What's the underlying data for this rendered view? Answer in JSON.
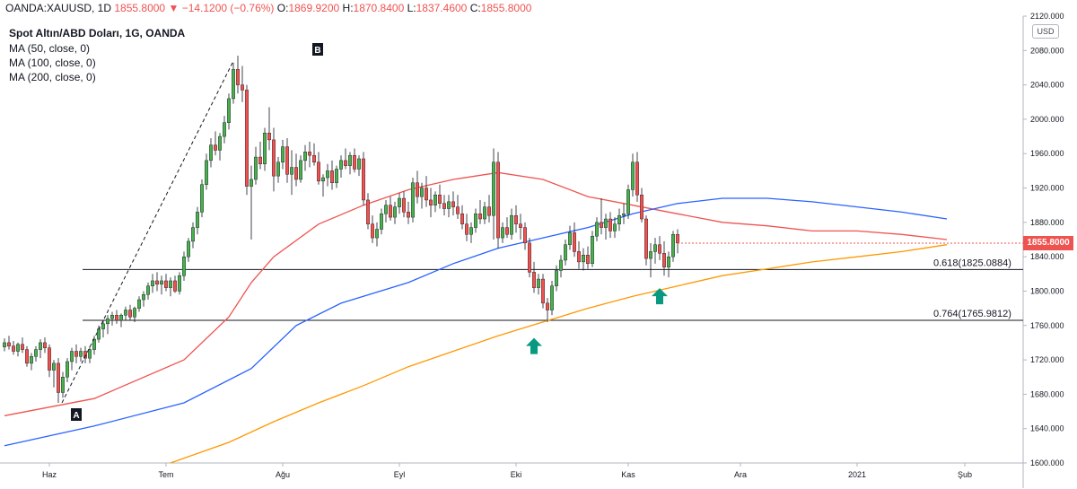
{
  "header": {
    "symbol": "OANDA:XAUUSD, 1D",
    "last": "1855.8000",
    "change": "−14.1200 (−0.76%)",
    "o_label": "O:",
    "o_value": "1869.9200",
    "h_label": "H:",
    "h_value": "1870.8400",
    "l_label": "L:",
    "l_value": "1837.4600",
    "c_label": "C:",
    "c_value": "1855.8000"
  },
  "legend": {
    "title": "Spot Altın/ABD Doları, 1G, OANDA",
    "ma50": "MA (50, close, 0)",
    "ma100": "MA (100, close, 0)",
    "ma200": "MA (200, close, 0)"
  },
  "currency_badge": "USD",
  "price_badge": "1855.8000",
  "colors": {
    "up": "#4caf50",
    "down": "#ef5350",
    "ma50": "#ef5350",
    "ma100": "#2962ff",
    "ma200": "#ff9800",
    "arrow": "#089981",
    "fib_line": "#131722"
  },
  "chart_data": {
    "type": "candlestick",
    "instrument": "Spot Altın/ABD Doları",
    "y_axis": {
      "min": 1600,
      "max": 2120,
      "ticks": [
        1600,
        1640,
        1680,
        1720,
        1760,
        1800,
        1840,
        1880,
        1920,
        1960,
        2000,
        2040,
        2080,
        2120
      ]
    },
    "x_axis": {
      "labels": [
        "Haz",
        "Tem",
        "Ağu",
        "Eyl",
        "Eki",
        "Kas",
        "Ara",
        "2021",
        "Şub"
      ],
      "label_index": [
        10,
        36,
        62,
        88,
        114,
        139,
        164,
        190,
        214
      ]
    },
    "ohlc": [
      [
        1735,
        1745,
        1730,
        1740
      ],
      [
        1740,
        1748,
        1732,
        1736
      ],
      [
        1736,
        1742,
        1726,
        1730
      ],
      [
        1730,
        1740,
        1724,
        1738
      ],
      [
        1738,
        1746,
        1728,
        1732
      ],
      [
        1732,
        1736,
        1712,
        1716
      ],
      [
        1716,
        1728,
        1708,
        1724
      ],
      [
        1724,
        1736,
        1718,
        1732
      ],
      [
        1732,
        1744,
        1722,
        1740
      ],
      [
        1740,
        1746,
        1728,
        1734
      ],
      [
        1734,
        1738,
        1700,
        1708
      ],
      [
        1708,
        1720,
        1688,
        1716
      ],
      [
        1716,
        1722,
        1670,
        1682
      ],
      [
        1682,
        1706,
        1676,
        1700
      ],
      [
        1700,
        1722,
        1694,
        1718
      ],
      [
        1718,
        1734,
        1708,
        1730
      ],
      [
        1730,
        1738,
        1716,
        1724
      ],
      [
        1724,
        1734,
        1718,
        1730
      ],
      [
        1730,
        1736,
        1716,
        1722
      ],
      [
        1722,
        1736,
        1716,
        1732
      ],
      [
        1732,
        1748,
        1726,
        1744
      ],
      [
        1744,
        1760,
        1740,
        1756
      ],
      [
        1756,
        1766,
        1746,
        1762
      ],
      [
        1762,
        1772,
        1750,
        1768
      ],
      [
        1768,
        1776,
        1760,
        1772
      ],
      [
        1772,
        1778,
        1762,
        1766
      ],
      [
        1766,
        1774,
        1758,
        1772
      ],
      [
        1772,
        1782,
        1766,
        1778
      ],
      [
        1778,
        1784,
        1766,
        1770
      ],
      [
        1770,
        1782,
        1764,
        1780
      ],
      [
        1780,
        1794,
        1776,
        1790
      ],
      [
        1790,
        1800,
        1782,
        1796
      ],
      [
        1796,
        1810,
        1790,
        1806
      ],
      [
        1806,
        1820,
        1798,
        1812
      ],
      [
        1812,
        1822,
        1800,
        1808
      ],
      [
        1808,
        1818,
        1796,
        1812
      ],
      [
        1812,
        1820,
        1800,
        1804
      ],
      [
        1804,
        1816,
        1794,
        1812
      ],
      [
        1812,
        1818,
        1798,
        1800
      ],
      [
        1800,
        1822,
        1796,
        1818
      ],
      [
        1818,
        1846,
        1812,
        1840
      ],
      [
        1840,
        1862,
        1834,
        1858
      ],
      [
        1858,
        1880,
        1850,
        1874
      ],
      [
        1874,
        1898,
        1866,
        1892
      ],
      [
        1892,
        1930,
        1886,
        1924
      ],
      [
        1924,
        1960,
        1918,
        1952
      ],
      [
        1952,
        1978,
        1944,
        1970
      ],
      [
        1970,
        1986,
        1958,
        1964
      ],
      [
        1964,
        1984,
        1952,
        1980
      ],
      [
        1980,
        2004,
        1972,
        1996
      ],
      [
        1996,
        2030,
        1988,
        2024
      ],
      [
        2024,
        2066,
        2018,
        2058
      ],
      [
        2058,
        2074,
        2030,
        2040
      ],
      [
        2040,
        2062,
        2020,
        2034
      ],
      [
        2034,
        2040,
        1912,
        1922
      ],
      [
        1922,
        1946,
        1860,
        1930
      ],
      [
        1930,
        1968,
        1924,
        1956
      ],
      [
        1956,
        1974,
        1942,
        1948
      ],
      [
        1948,
        1990,
        1940,
        1984
      ],
      [
        1984,
        2014,
        1964,
        1976
      ],
      [
        1976,
        1990,
        1916,
        1934
      ],
      [
        1934,
        1956,
        1926,
        1950
      ],
      [
        1950,
        1976,
        1942,
        1968
      ],
      [
        1968,
        1978,
        1926,
        1936
      ],
      [
        1936,
        1964,
        1912,
        1944
      ],
      [
        1944,
        1960,
        1922,
        1930
      ],
      [
        1930,
        1958,
        1926,
        1952
      ],
      [
        1952,
        1970,
        1940,
        1962
      ],
      [
        1962,
        1974,
        1944,
        1958
      ],
      [
        1958,
        1972,
        1946,
        1950
      ],
      [
        1950,
        1962,
        1924,
        1928
      ],
      [
        1928,
        1936,
        1910,
        1932
      ],
      [
        1932,
        1948,
        1922,
        1940
      ],
      [
        1940,
        1952,
        1918,
        1926
      ],
      [
        1926,
        1946,
        1920,
        1942
      ],
      [
        1942,
        1958,
        1932,
        1952
      ],
      [
        1952,
        1966,
        1942,
        1946
      ],
      [
        1946,
        1962,
        1936,
        1958
      ],
      [
        1958,
        1966,
        1938,
        1942
      ],
      [
        1942,
        1958,
        1934,
        1954
      ],
      [
        1954,
        1962,
        1900,
        1906
      ],
      [
        1906,
        1914,
        1872,
        1878
      ],
      [
        1878,
        1888,
        1856,
        1862
      ],
      [
        1862,
        1880,
        1852,
        1872
      ],
      [
        1872,
        1896,
        1866,
        1890
      ],
      [
        1890,
        1906,
        1880,
        1900
      ],
      [
        1900,
        1910,
        1882,
        1886
      ],
      [
        1886,
        1904,
        1878,
        1898
      ],
      [
        1898,
        1914,
        1890,
        1908
      ],
      [
        1908,
        1916,
        1886,
        1892
      ],
      [
        1892,
        1904,
        1878,
        1886
      ],
      [
        1886,
        1932,
        1880,
        1926
      ],
      [
        1926,
        1940,
        1902,
        1910
      ],
      [
        1910,
        1926,
        1896,
        1920
      ],
      [
        1920,
        1934,
        1898,
        1906
      ],
      [
        1906,
        1920,
        1886,
        1900
      ],
      [
        1900,
        1916,
        1892,
        1912
      ],
      [
        1912,
        1924,
        1896,
        1902
      ],
      [
        1902,
        1912,
        1888,
        1896
      ],
      [
        1896,
        1912,
        1886,
        1904
      ],
      [
        1904,
        1916,
        1888,
        1898
      ],
      [
        1898,
        1912,
        1884,
        1890
      ],
      [
        1890,
        1900,
        1872,
        1878
      ],
      [
        1878,
        1890,
        1858,
        1866
      ],
      [
        1866,
        1880,
        1856,
        1874
      ],
      [
        1874,
        1896,
        1868,
        1890
      ],
      [
        1890,
        1906,
        1878,
        1884
      ],
      [
        1884,
        1904,
        1878,
        1898
      ],
      [
        1898,
        1912,
        1880,
        1888
      ],
      [
        1888,
        1966,
        1860,
        1950
      ],
      [
        1950,
        1962,
        1850,
        1862
      ],
      [
        1862,
        1880,
        1856,
        1874
      ],
      [
        1874,
        1886,
        1862,
        1866
      ],
      [
        1866,
        1896,
        1860,
        1888
      ],
      [
        1888,
        1900,
        1868,
        1878
      ],
      [
        1878,
        1890,
        1860,
        1874
      ],
      [
        1874,
        1880,
        1848,
        1856
      ],
      [
        1856,
        1862,
        1816,
        1822
      ],
      [
        1822,
        1834,
        1798,
        1804
      ],
      [
        1804,
        1820,
        1796,
        1814
      ],
      [
        1814,
        1820,
        1780,
        1786
      ],
      [
        1786,
        1792,
        1764,
        1778
      ],
      [
        1778,
        1812,
        1772,
        1806
      ],
      [
        1806,
        1830,
        1800,
        1824
      ],
      [
        1824,
        1842,
        1816,
        1836
      ],
      [
        1836,
        1860,
        1830,
        1854
      ],
      [
        1854,
        1876,
        1848,
        1868
      ],
      [
        1868,
        1880,
        1840,
        1846
      ],
      [
        1846,
        1858,
        1826,
        1834
      ],
      [
        1834,
        1850,
        1824,
        1842
      ],
      [
        1842,
        1852,
        1826,
        1832
      ],
      [
        1832,
        1870,
        1828,
        1864
      ],
      [
        1864,
        1886,
        1858,
        1880
      ],
      [
        1880,
        1908,
        1866,
        1874
      ],
      [
        1874,
        1890,
        1860,
        1884
      ],
      [
        1884,
        1892,
        1862,
        1870
      ],
      [
        1870,
        1886,
        1862,
        1878
      ],
      [
        1878,
        1896,
        1870,
        1888
      ],
      [
        1888,
        1902,
        1878,
        1890
      ],
      [
        1890,
        1924,
        1884,
        1918
      ],
      [
        1918,
        1960,
        1910,
        1950
      ],
      [
        1950,
        1962,
        1904,
        1912
      ],
      [
        1912,
        1920,
        1880,
        1884
      ],
      [
        1884,
        1888,
        1830,
        1838
      ],
      [
        1838,
        1856,
        1816,
        1846
      ],
      [
        1846,
        1862,
        1832,
        1854
      ],
      [
        1854,
        1864,
        1836,
        1844
      ],
      [
        1844,
        1858,
        1818,
        1828
      ],
      [
        1828,
        1846,
        1816,
        1840
      ],
      [
        1840,
        1870,
        1834,
        1866
      ],
      [
        1866,
        1872,
        1844,
        1856
      ]
    ],
    "ma50": [
      [
        0,
        1655
      ],
      [
        20,
        1675
      ],
      [
        40,
        1720
      ],
      [
        50,
        1770
      ],
      [
        55,
        1810
      ],
      [
        60,
        1840
      ],
      [
        70,
        1878
      ],
      [
        80,
        1900
      ],
      [
        90,
        1918
      ],
      [
        100,
        1930
      ],
      [
        110,
        1938
      ],
      [
        120,
        1930
      ],
      [
        130,
        1910
      ],
      [
        140,
        1900
      ],
      [
        150,
        1890
      ],
      [
        160,
        1880
      ],
      [
        170,
        1876
      ],
      [
        180,
        1870
      ],
      [
        190,
        1870
      ],
      [
        200,
        1866
      ],
      [
        210,
        1860
      ]
    ],
    "ma100": [
      [
        0,
        1620
      ],
      [
        20,
        1643
      ],
      [
        40,
        1670
      ],
      [
        55,
        1710
      ],
      [
        65,
        1760
      ],
      [
        75,
        1786
      ],
      [
        90,
        1810
      ],
      [
        100,
        1832
      ],
      [
        110,
        1850
      ],
      [
        120,
        1862
      ],
      [
        130,
        1874
      ],
      [
        140,
        1890
      ],
      [
        150,
        1902
      ],
      [
        160,
        1908
      ],
      [
        170,
        1908
      ],
      [
        180,
        1904
      ],
      [
        190,
        1898
      ],
      [
        200,
        1892
      ],
      [
        210,
        1884
      ]
    ],
    "ma200": [
      [
        37,
        1600
      ],
      [
        50,
        1624
      ],
      [
        60,
        1648
      ],
      [
        70,
        1670
      ],
      [
        80,
        1690
      ],
      [
        90,
        1712
      ],
      [
        100,
        1730
      ],
      [
        110,
        1748
      ],
      [
        120,
        1764
      ],
      [
        130,
        1780
      ],
      [
        140,
        1794
      ],
      [
        150,
        1806
      ],
      [
        160,
        1818
      ],
      [
        170,
        1826
      ],
      [
        180,
        1834
      ],
      [
        190,
        1840
      ],
      [
        200,
        1846
      ],
      [
        210,
        1854
      ]
    ],
    "fib_levels": [
      {
        "label": "0.618(1825.0884)",
        "value": 1825.0884
      },
      {
        "label": "0.764(1765.9812)",
        "value": 1765.9812
      }
    ],
    "points": [
      {
        "label": "A",
        "index": 12,
        "price": 1670
      },
      {
        "label": "B",
        "index": 51,
        "price": 2074
      }
    ],
    "arrows": [
      {
        "index": 118,
        "price": 1758
      },
      {
        "index": 146,
        "price": 1816
      }
    ],
    "last_price": 1855.8
  }
}
